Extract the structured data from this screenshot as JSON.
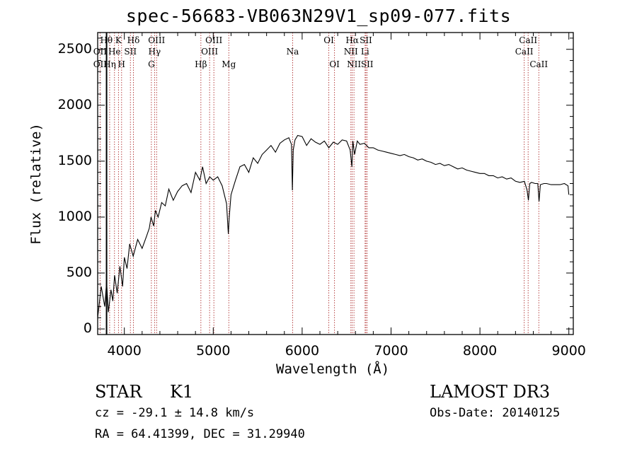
{
  "chart_data": {
    "type": "line",
    "title": "spec-56683-VB063N29V1_sp09-077.fits",
    "xlabel": "Wavelength (Å)",
    "ylabel": "Flux (relative)",
    "xlim": [
      3700,
      9050
    ],
    "ylim": [
      -50,
      2650
    ],
    "x_ticks": [
      4000,
      5000,
      6000,
      7000,
      8000,
      9000
    ],
    "y_ticks": [
      0,
      500,
      1000,
      1500,
      2000,
      2500
    ],
    "series": [
      {
        "name": "flux",
        "x": [
          3700,
          3740,
          3780,
          3800,
          3820,
          3850,
          3870,
          3890,
          3920,
          3950,
          3980,
          4000,
          4030,
          4060,
          4100,
          4150,
          4200,
          4250,
          4280,
          4300,
          4330,
          4350,
          4380,
          4420,
          4460,
          4500,
          4550,
          4600,
          4650,
          4700,
          4750,
          4800,
          4850,
          4880,
          4920,
          4960,
          5000,
          5050,
          5100,
          5150,
          5170,
          5180,
          5200,
          5250,
          5300,
          5350,
          5400,
          5450,
          5500,
          5550,
          5600,
          5650,
          5700,
          5750,
          5800,
          5850,
          5880,
          5890,
          5900,
          5920,
          5950,
          6000,
          6050,
          6100,
          6150,
          6200,
          6250,
          6300,
          6350,
          6400,
          6450,
          6500,
          6540,
          6560,
          6570,
          6590,
          6620,
          6650,
          6700,
          6750,
          6800,
          6850,
          6900,
          6950,
          7000,
          7050,
          7100,
          7150,
          7200,
          7250,
          7300,
          7350,
          7400,
          7450,
          7500,
          7550,
          7600,
          7650,
          7700,
          7750,
          7800,
          7850,
          7900,
          7950,
          8000,
          8050,
          8100,
          8150,
          8200,
          8250,
          8300,
          8350,
          8400,
          8450,
          8500,
          8530,
          8545,
          8560,
          8580,
          8620,
          8650,
          8665,
          8680,
          8720,
          8750,
          8800,
          8850,
          8900,
          8950,
          8990,
          9000
        ],
        "values": [
          100,
          380,
          200,
          420,
          150,
          350,
          250,
          480,
          320,
          560,
          380,
          640,
          540,
          760,
          650,
          800,
          720,
          830,
          900,
          1000,
          920,
          1060,
          1000,
          1130,
          1100,
          1250,
          1150,
          1230,
          1280,
          1300,
          1220,
          1400,
          1330,
          1450,
          1300,
          1360,
          1330,
          1360,
          1280,
          1120,
          850,
          1000,
          1200,
          1330,
          1450,
          1470,
          1400,
          1530,
          1480,
          1560,
          1600,
          1640,
          1580,
          1660,
          1690,
          1710,
          1650,
          1240,
          1600,
          1690,
          1730,
          1720,
          1640,
          1700,
          1670,
          1650,
          1680,
          1620,
          1670,
          1650,
          1690,
          1680,
          1600,
          1450,
          1680,
          1560,
          1680,
          1650,
          1660,
          1620,
          1620,
          1600,
          1590,
          1580,
          1570,
          1560,
          1550,
          1560,
          1540,
          1530,
          1510,
          1520,
          1500,
          1490,
          1470,
          1480,
          1460,
          1470,
          1450,
          1430,
          1440,
          1420,
          1410,
          1400,
          1390,
          1390,
          1370,
          1370,
          1350,
          1360,
          1340,
          1350,
          1320,
          1310,
          1320,
          1240,
          1150,
          1300,
          1310,
          1300,
          1300,
          1140,
          1290,
          1300,
          1300,
          1290,
          1290,
          1290,
          1300,
          1280,
          1200
        ]
      }
    ],
    "line_markers": [
      {
        "label": "Hδ",
        "x": 4102,
        "row": 1
      },
      {
        "label": "Hγ",
        "x": 4340,
        "row": 2
      },
      {
        "label": "Hβ",
        "x": 4861,
        "row": 3
      },
      {
        "label": "OΙΙΙ",
        "x": 4363,
        "row": 1
      },
      {
        "label": "OIII",
        "x": 5007,
        "row": 1
      },
      {
        "label": "OIII",
        "x": 4959,
        "row": 2
      },
      {
        "label": "Mg",
        "x": 5175,
        "row": 3
      },
      {
        "label": "Na",
        "x": 5893,
        "row": 2
      },
      {
        "label": "OI",
        "x": 6300,
        "row": 1
      },
      {
        "label": "OI",
        "x": 6364,
        "row": 3
      },
      {
        "label": "Hα",
        "x": 6563,
        "row": 1
      },
      {
        "label": "NII",
        "x": 6548,
        "row": 2
      },
      {
        "label": "NII",
        "x": 6583,
        "row": 3
      },
      {
        "label": "SII",
        "x": 6717,
        "row": 1
      },
      {
        "label": "Li",
        "x": 6708,
        "row": 2
      },
      {
        "label": "SII",
        "x": 6731,
        "row": 3
      },
      {
        "label": "CaII",
        "x": 8542,
        "row": 1
      },
      {
        "label": "CaII",
        "x": 8498,
        "row": 2
      },
      {
        "label": "CaII",
        "x": 8662,
        "row": 3
      },
      {
        "label": "G",
        "x": 4304,
        "row": 3
      },
      {
        "label": "Hθ",
        "x": 3798,
        "row": 1
      },
      {
        "label": "OII",
        "x": 3727,
        "row": 2
      },
      {
        "label": "OII",
        "x": 3727,
        "row": 3
      },
      {
        "label": "K",
        "x": 3934,
        "row": 1
      },
      {
        "label": "H",
        "x": 3969,
        "row": 3
      },
      {
        "label": "He",
        "x": 3889,
        "row": 2
      },
      {
        "label": "Hη",
        "x": 3835,
        "row": 3
      },
      {
        "label": "SII",
        "x": 4068,
        "row": 2
      }
    ]
  },
  "info": {
    "class": "STAR",
    "subclass": "K1",
    "survey": "LAMOST DR3",
    "cz": "cz = -29.1 ± 14.8 km/s",
    "obs_date": "Obs-Date: 20140125",
    "coords": "RA =  64.41399, DEC =  31.29940"
  },
  "colors": {
    "line": "#000000",
    "marker": "#b03030"
  }
}
